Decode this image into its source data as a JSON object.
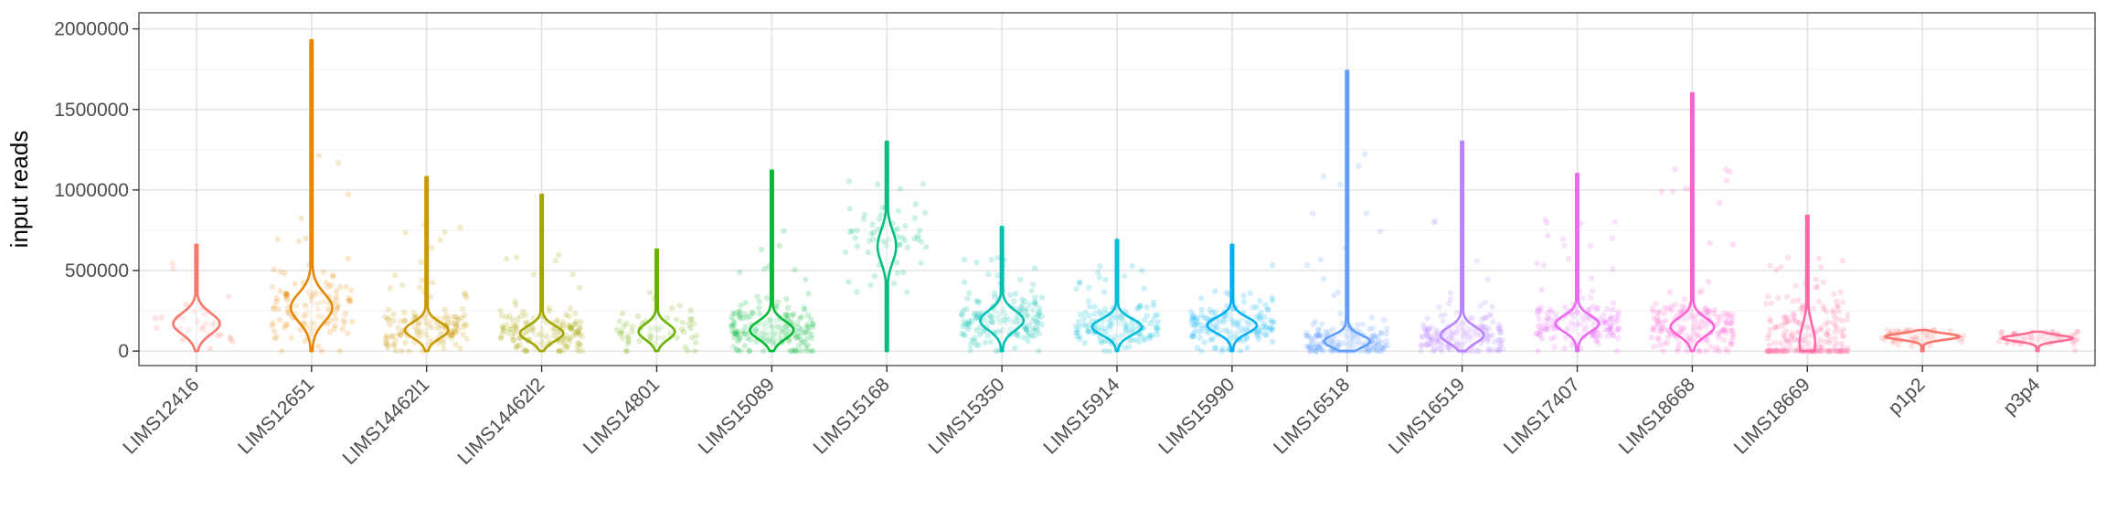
{
  "chart_data": {
    "type": "violin",
    "title": "",
    "xlabel": "",
    "ylabel": "input reads",
    "ylim": [
      -90000,
      2100000
    ],
    "y_ticks": [
      0,
      500000,
      1000000,
      1500000,
      2000000
    ],
    "y_tick_labels": [
      "0",
      "500000",
      "1000000",
      "1500000",
      "2000000"
    ],
    "grid": true,
    "legend": "none",
    "categories": [
      "LIMS12416",
      "LIMS12651",
      "LIMS14462l1",
      "LIMS14462l2",
      "LIMS14801",
      "LIMS15089",
      "LIMS15168",
      "LIMS15350",
      "LIMS15914",
      "LIMS15990",
      "LIMS16518",
      "LIMS16519",
      "LIMS17407",
      "LIMS18668",
      "LIMS18669",
      "p1p2",
      "p3p4"
    ],
    "colors": [
      "#F8766D",
      "#E58700",
      "#C99800",
      "#A3A500",
      "#6BB100",
      "#00BA38",
      "#00BF7D",
      "#00C0AF",
      "#00BCD8",
      "#00B0F6",
      "#619CFF",
      "#B983FF",
      "#E76BF3",
      "#FD61D1",
      "#FF67A4",
      "#F8766D",
      "#FF6C91"
    ],
    "series": [
      {
        "min": 0,
        "max": 660000,
        "mode": 170000,
        "spread": 120000,
        "peak_width": 0.45,
        "n_points": 30
      },
      {
        "min": 0,
        "max": 1930000,
        "mode": 270000,
        "spread": 160000,
        "peak_width": 0.4,
        "n_points": 120
      },
      {
        "min": 0,
        "max": 1080000,
        "mode": 130000,
        "spread": 90000,
        "peak_width": 0.42,
        "n_points": 150
      },
      {
        "min": 0,
        "max": 970000,
        "mode": 110000,
        "spread": 85000,
        "peak_width": 0.42,
        "n_points": 160
      },
      {
        "min": 0,
        "max": 630000,
        "mode": 120000,
        "spread": 90000,
        "peak_width": 0.35,
        "n_points": 60
      },
      {
        "min": 0,
        "max": 1120000,
        "mode": 130000,
        "spread": 100000,
        "peak_width": 0.42,
        "n_points": 180
      },
      {
        "min": 0,
        "max": 1300000,
        "mode": 650000,
        "spread": 180000,
        "peak_width": 0.18,
        "n_points": 60
      },
      {
        "min": 0,
        "max": 770000,
        "mode": 190000,
        "spread": 110000,
        "peak_width": 0.42,
        "n_points": 170
      },
      {
        "min": 0,
        "max": 690000,
        "mode": 150000,
        "spread": 90000,
        "peak_width": 0.48,
        "n_points": 160
      },
      {
        "min": 0,
        "max": 660000,
        "mode": 160000,
        "spread": 90000,
        "peak_width": 0.48,
        "n_points": 160
      },
      {
        "min": 0,
        "max": 1740000,
        "mode": 60000,
        "spread": 70000,
        "peak_width": 0.45,
        "n_points": 180
      },
      {
        "min": 0,
        "max": 1300000,
        "mode": 100000,
        "spread": 90000,
        "peak_width": 0.42,
        "n_points": 170
      },
      {
        "min": 0,
        "max": 1100000,
        "mode": 170000,
        "spread": 90000,
        "peak_width": 0.42,
        "n_points": 160
      },
      {
        "min": 0,
        "max": 1600000,
        "mode": 150000,
        "spread": 100000,
        "peak_width": 0.42,
        "n_points": 180
      },
      {
        "min": 0,
        "max": 840000,
        "mode": 50000,
        "spread": 200000,
        "peak_width": 0.15,
        "n_points": 200
      },
      {
        "min": 0,
        "max": 130000,
        "mode": 90000,
        "spread": 35000,
        "peak_width": 0.72,
        "n_points": 60
      },
      {
        "min": 0,
        "max": 120000,
        "mode": 80000,
        "spread": 35000,
        "peak_width": 0.68,
        "n_points": 60
      }
    ]
  }
}
